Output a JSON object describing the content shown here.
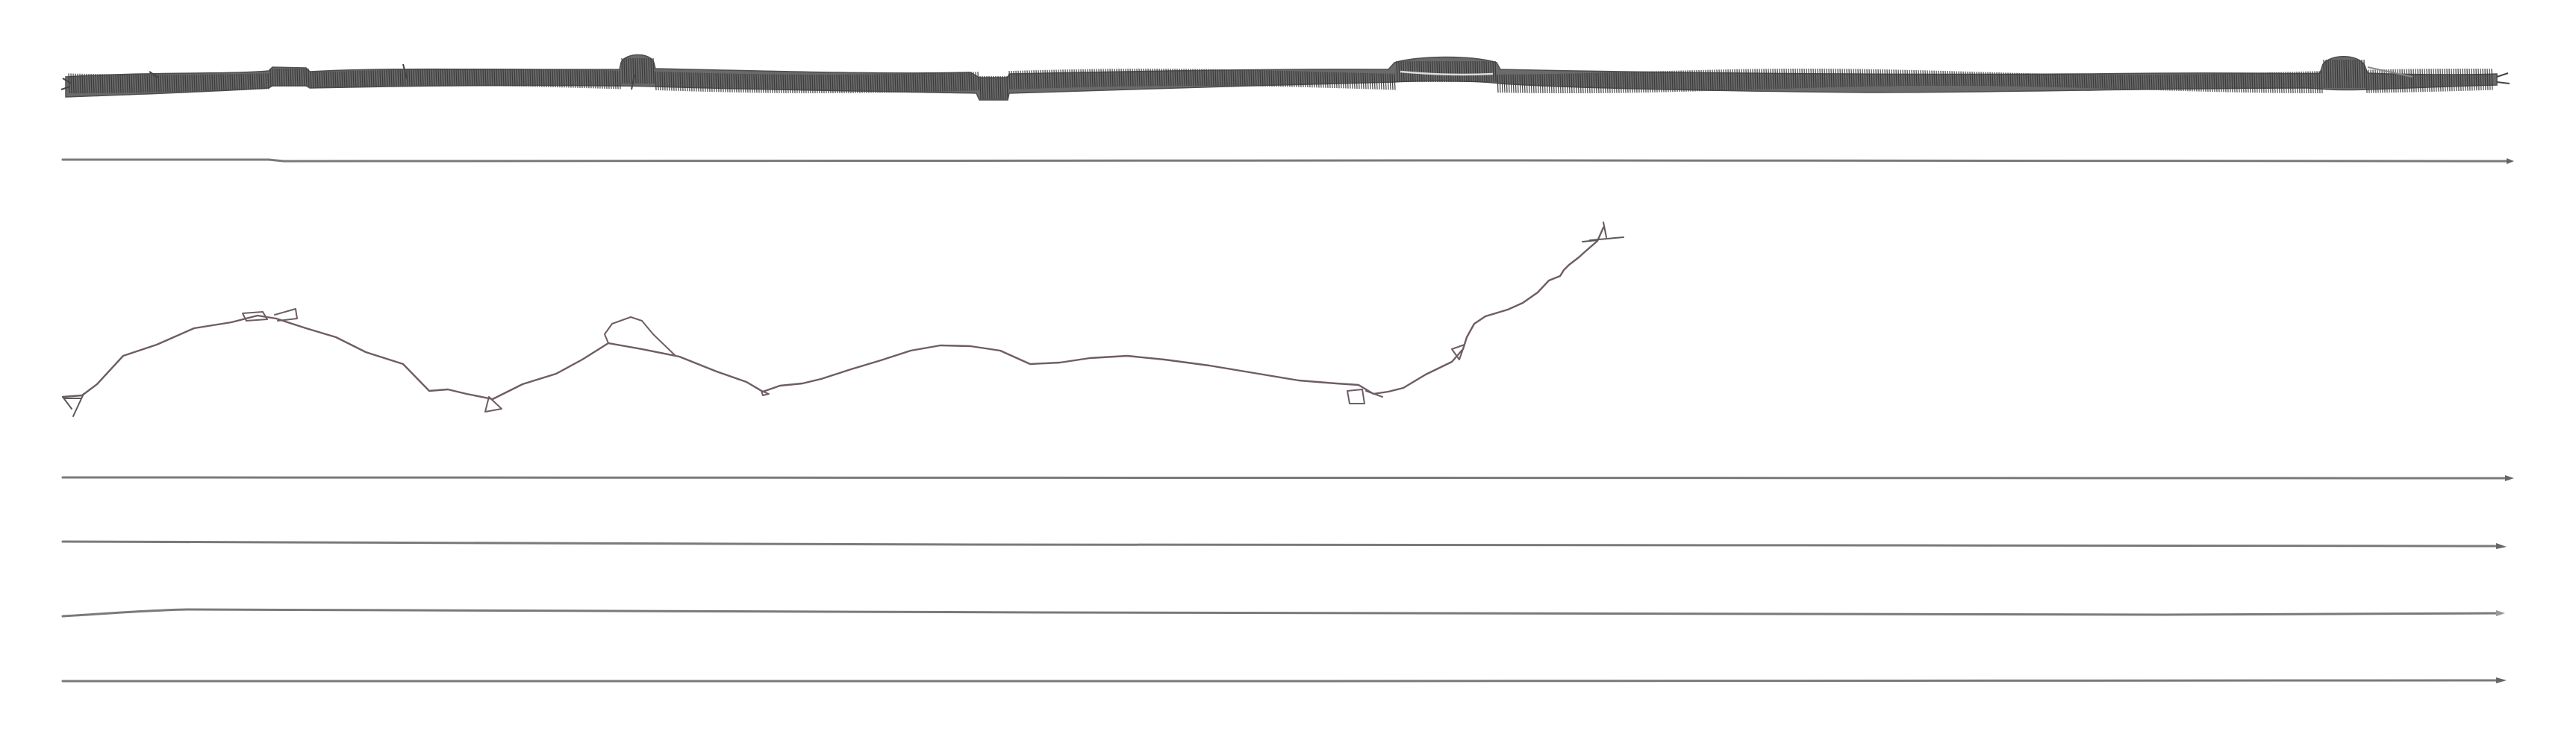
{
  "figure": {
    "panels": [
      {
        "id": "ribbon",
        "kind": "hatched-ribbon",
        "ink": "#5a5a5a",
        "shading": "#3b3b3b"
      },
      {
        "id": "flat-line-1",
        "kind": "line",
        "ink": "#7a7a7a"
      },
      {
        "id": "wandering-trace",
        "kind": "line",
        "ink": "#6e5c66"
      },
      {
        "id": "flat-line-2",
        "kind": "line",
        "ink": "#7a7a7a"
      },
      {
        "id": "flat-line-3",
        "kind": "line",
        "ink": "#7a7a7a"
      },
      {
        "id": "flat-line-4",
        "kind": "line",
        "ink": "#7a7a7a"
      },
      {
        "id": "flat-line-5",
        "kind": "line",
        "ink": "#7a7a7a"
      }
    ]
  }
}
